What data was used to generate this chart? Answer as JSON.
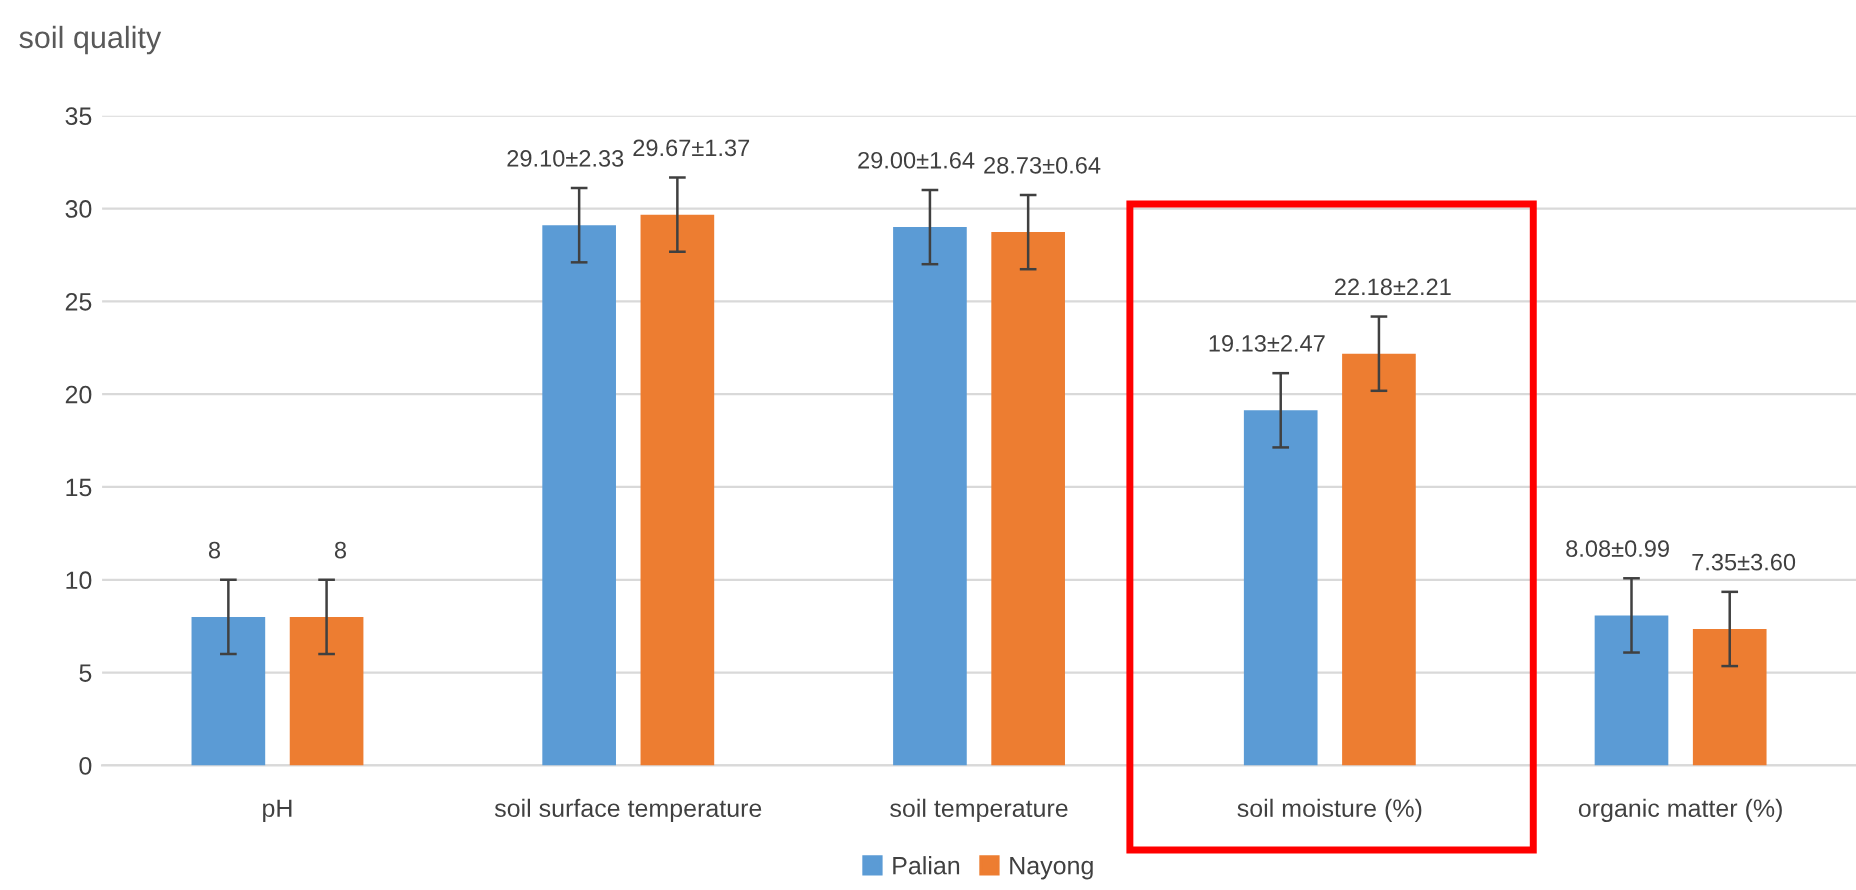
{
  "chart_data": {
    "type": "bar",
    "title": "soil quality",
    "categories": [
      "pH",
      "soil surface temperature",
      "soil temperature",
      "soil moisture (%)",
      "organic matter (%)"
    ],
    "series": [
      {
        "name": "Palian",
        "color": "#5b9bd5",
        "values": [
          8,
          29.1,
          29.0,
          19.13,
          8.08
        ],
        "errors": [
          2,
          2,
          2,
          2,
          2
        ],
        "value_labels": [
          "8",
          "29.10±2.33",
          "29.00±1.64",
          "19.13±2.47",
          "8.08±0.99"
        ]
      },
      {
        "name": "Nayong",
        "color": "#ed7d31",
        "values": [
          8,
          29.67,
          28.73,
          22.18,
          7.35
        ],
        "errors": [
          2,
          2,
          2,
          2,
          2
        ],
        "value_labels": [
          "8",
          "29.67±1.37",
          "28.73±0.64",
          "22.18±2.21",
          "7.35±3.60"
        ]
      }
    ],
    "ylim": [
      0,
      35
    ],
    "yticks": [
      0,
      5,
      10,
      15,
      20,
      25,
      30,
      35
    ],
    "grid": "y",
    "legend": "bottom"
  }
}
